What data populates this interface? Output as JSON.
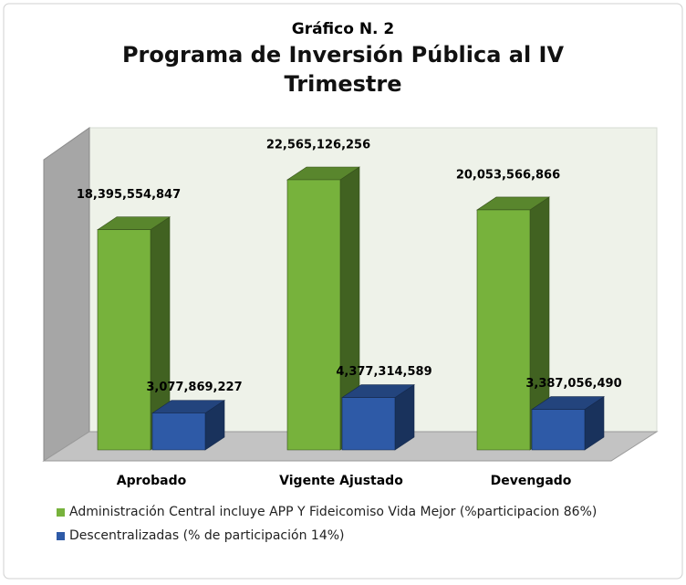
{
  "chart_data": {
    "type": "bar3d",
    "subtitle": "Gráfico N. 2",
    "title": "Programa de Inversión Pública al IV Trimestre",
    "categories": [
      "Aprobado",
      "Vigente Ajustado",
      "Devengado"
    ],
    "series": [
      {
        "name": "Administración Central incluye APP Y Fideicomiso Vida Mejor (%participacion 86%)",
        "color": "#77b23c",
        "values": [
          18395554847,
          22565126256,
          20053566866
        ],
        "value_labels": [
          "18,395,554,847",
          "22,565,126,256",
          "20,053,566,866"
        ]
      },
      {
        "name": "Descentralizadas (% de participación 14%)",
        "color": "#2e5aa7",
        "values": [
          3077869227,
          4377314589,
          3387056490
        ],
        "value_labels": [
          "3,077,869,227",
          "4,377,314,589",
          "3,387,056,490"
        ]
      }
    ],
    "legend": "bottom"
  }
}
